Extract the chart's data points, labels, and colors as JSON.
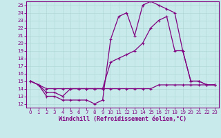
{
  "background_color": "#c8eaea",
  "grid_color": "#aadddd",
  "line_color": "#800080",
  "xlabel": "Windchill (Refroidissement éolien,°C)",
  "xlabel_fontsize": 6,
  "xlim": [
    -0.5,
    23.5
  ],
  "ylim": [
    11.5,
    25.5
  ],
  "xticks": [
    0,
    1,
    2,
    3,
    4,
    5,
    6,
    7,
    8,
    9,
    10,
    11,
    12,
    13,
    14,
    15,
    16,
    17,
    18,
    19,
    20,
    21,
    22,
    23
  ],
  "yticks": [
    12,
    13,
    14,
    15,
    16,
    17,
    18,
    19,
    20,
    21,
    22,
    23,
    24,
    25
  ],
  "tick_fontsize": 5,
  "line1_x": [
    0,
    1,
    2,
    3,
    4,
    5,
    6,
    7,
    8,
    9,
    10,
    11,
    12,
    13,
    14,
    15,
    16,
    17,
    18,
    19,
    20,
    21,
    22,
    23
  ],
  "line1_y": [
    15,
    14.5,
    13,
    13,
    12.5,
    12.5,
    12.5,
    12.5,
    12,
    12.5,
    20.5,
    23.5,
    24,
    21,
    25,
    25.5,
    25,
    24.5,
    24,
    19,
    15,
    15,
    14.5,
    14.5
  ],
  "line2_x": [
    0,
    1,
    2,
    3,
    4,
    5,
    6,
    7,
    8,
    9,
    10,
    11,
    12,
    13,
    14,
    15,
    16,
    17,
    18,
    19,
    20,
    21,
    22,
    23
  ],
  "line2_y": [
    15,
    14.5,
    13.5,
    13.5,
    13,
    14,
    14,
    14,
    14,
    14,
    17.5,
    18,
    18.5,
    19,
    20,
    22,
    23,
    23.5,
    19,
    19,
    15,
    15,
    14.5,
    14.5
  ],
  "line3_x": [
    0,
    1,
    2,
    3,
    4,
    5,
    6,
    7,
    8,
    9,
    10,
    11,
    12,
    13,
    14,
    15,
    16,
    17,
    18,
    19,
    20,
    21,
    22,
    23
  ],
  "line3_y": [
    15,
    14.5,
    14,
    14,
    14,
    14,
    14,
    14,
    14,
    14,
    14,
    14,
    14,
    14,
    14,
    14,
    14.5,
    14.5,
    14.5,
    14.5,
    14.5,
    14.5,
    14.5,
    14.5
  ]
}
